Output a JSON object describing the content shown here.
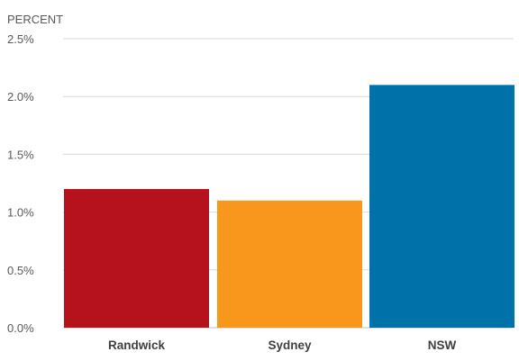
{
  "chart_data": {
    "type": "bar",
    "ylabel": "PERCENT",
    "categories": [
      "Randwick",
      "Sydney",
      "NSW"
    ],
    "values": [
      1.2,
      1.1,
      2.1
    ],
    "colors": [
      "#b5121b",
      "#f7981d",
      "#0072aa"
    ],
    "ylim": [
      0,
      2.5
    ],
    "yticks": [
      0,
      0.5,
      1.0,
      1.5,
      2.0,
      2.5
    ],
    "ytick_labels": [
      "0.0%",
      "0.5%",
      "1.0%",
      "1.5%",
      "2.0%",
      "2.5%"
    ],
    "grid": true,
    "legend": "none"
  }
}
